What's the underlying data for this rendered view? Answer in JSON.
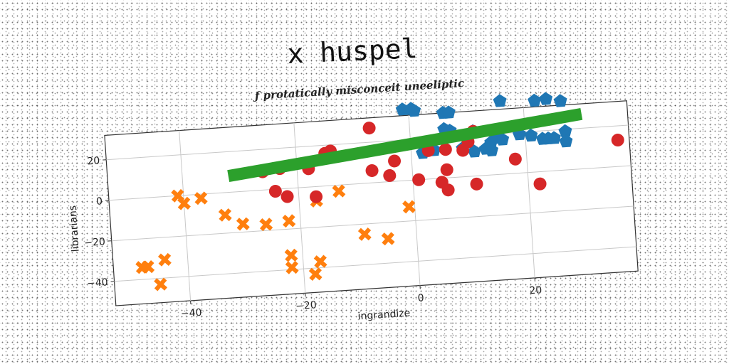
{
  "chart_data": {
    "type": "scatter",
    "title": "x huspel",
    "subtitle": "ƒ protatically misconceit uneeliptic",
    "xlabel": "ingrandize",
    "ylabel": "librarians",
    "xlim": [
      -53,
      38
    ],
    "ylim": [
      -52,
      32
    ],
    "xticks": [
      -40,
      -20,
      0,
      20
    ],
    "yticks": [
      -40,
      -20,
      0,
      20
    ],
    "grid": true,
    "series": [
      {
        "marker": "pentagon",
        "color": "#1f77b4",
        "points": [
          [
            -1,
            35
          ],
          [
            0.5,
            35
          ],
          [
            1,
            34
          ],
          [
            6,
            32
          ],
          [
            7,
            32
          ],
          [
            16,
            36
          ],
          [
            22,
            35
          ],
          [
            24,
            35.5
          ],
          [
            26.5,
            34
          ],
          [
            7,
            23
          ],
          [
            11,
            22
          ],
          [
            19,
            19
          ],
          [
            21,
            18
          ],
          [
            23,
            16
          ],
          [
            24,
            16
          ],
          [
            15,
            18
          ],
          [
            16,
            17
          ],
          [
            14,
            16
          ],
          [
            13,
            13
          ],
          [
            14,
            12
          ],
          [
            11,
            12
          ],
          [
            27,
            19
          ],
          [
            27,
            14
          ],
          [
            2,
            13
          ],
          [
            6,
            24
          ],
          [
            4,
            14
          ],
          [
            9,
            14
          ],
          [
            25,
            16
          ]
        ]
      },
      {
        "marker": "x",
        "color": "#ff7f0e",
        "points": [
          [
            -41,
            0
          ],
          [
            -40,
            -4
          ],
          [
            -37,
            -2
          ],
          [
            -33,
            -11
          ],
          [
            -30,
            -16
          ],
          [
            -26,
            -17
          ],
          [
            -22,
            -16
          ],
          [
            -17,
            -7
          ],
          [
            -13,
            -3
          ],
          [
            -9,
            -25
          ],
          [
            -5,
            -28
          ],
          [
            -1,
            -13
          ],
          [
            -44,
            -31
          ],
          [
            -47,
            -34
          ],
          [
            -48,
            -34
          ],
          [
            -45,
            -43
          ],
          [
            -22,
            -33
          ],
          [
            -22,
            -39
          ],
          [
            -17,
            -37
          ],
          [
            -18,
            -43
          ]
        ]
      },
      {
        "marker": "circle",
        "color": "#d62728",
        "points": [
          [
            -26,
            9
          ],
          [
            -23,
            10
          ],
          [
            -18,
            9
          ],
          [
            -14,
            17
          ],
          [
            -15,
            16
          ],
          [
            -7,
            27
          ],
          [
            -24,
            -1
          ],
          [
            -22,
            -4
          ],
          [
            -17,
            -5
          ],
          [
            -7,
            6
          ],
          [
            -4,
            3
          ],
          [
            -3,
            10
          ],
          [
            1,
            0
          ],
          [
            3,
            14
          ],
          [
            5,
            -2
          ],
          [
            6,
            -6
          ],
          [
            6,
            4
          ],
          [
            6,
            14
          ],
          [
            9,
            13
          ],
          [
            10,
            17
          ],
          [
            11,
            22
          ],
          [
            11,
            -4
          ],
          [
            18,
            7
          ],
          [
            22,
            -6
          ],
          [
            36,
            13
          ]
        ]
      },
      {
        "marker": "line",
        "color": "#2ca02c",
        "points": [
          [
            -32,
            8
          ],
          [
            30,
            27
          ]
        ]
      }
    ]
  }
}
